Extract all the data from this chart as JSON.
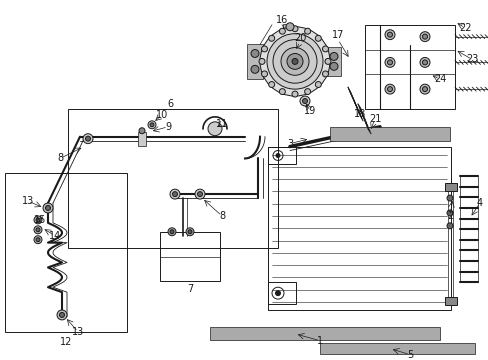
{
  "bg_color": "#ffffff",
  "line_color": "#1a1a1a",
  "label_color": "#1a1a1a",
  "fig_width": 4.89,
  "fig_height": 3.6,
  "dpi": 100
}
